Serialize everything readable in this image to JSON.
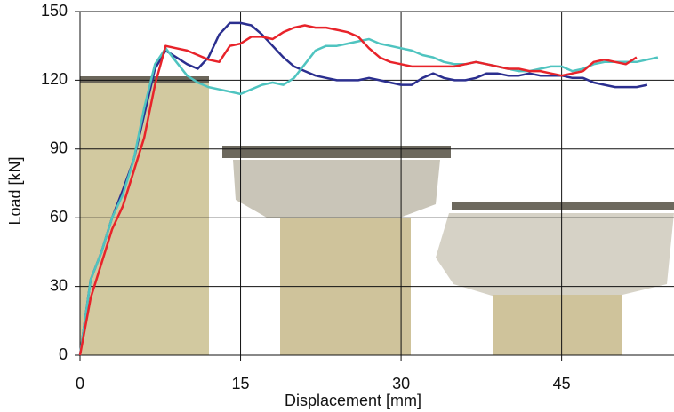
{
  "chart_data": {
    "type": "line",
    "x_label": "Displacement [mm]",
    "y_label": "Load [kN]",
    "xlim": [
      0,
      55.5
    ],
    "ylim": [
      0,
      150
    ],
    "xticks": [
      0,
      15,
      30,
      45
    ],
    "yticks": [
      0,
      30,
      60,
      90,
      120,
      150
    ],
    "grid": true,
    "x": [
      0,
      1,
      2,
      3,
      4,
      5,
      6,
      7,
      8,
      9,
      10,
      11,
      12,
      13,
      14,
      15,
      16,
      17,
      18,
      19,
      20,
      21,
      22,
      23,
      24,
      25,
      26,
      27,
      28,
      29,
      30,
      31,
      32,
      33,
      34,
      35,
      36,
      37,
      38,
      39,
      40,
      41,
      42,
      43,
      44,
      45,
      46,
      47,
      48,
      49,
      50,
      51,
      52,
      53,
      54
    ],
    "series": [
      {
        "color": "#2b2f8f",
        "values": [
          0,
          33,
          45,
          60,
          72,
          85,
          105,
          125,
          133,
          130,
          127,
          125,
          130,
          140,
          145,
          145,
          144,
          140,
          135,
          130,
          126,
          124,
          122,
          121,
          120,
          120,
          120,
          121,
          120,
          119,
          118,
          118,
          121,
          123,
          121,
          120,
          120,
          121,
          123,
          123,
          122,
          122,
          123,
          122,
          122,
          122,
          121,
          121,
          119,
          118,
          117,
          117,
          117,
          118,
          null
        ]
      },
      {
        "color": "#4fc4c0",
        "values": [
          0,
          33,
          45,
          60,
          70,
          85,
          108,
          127,
          134,
          128,
          122,
          119,
          117,
          116,
          115,
          114,
          116,
          118,
          119,
          118,
          121,
          127,
          133,
          135,
          135,
          136,
          137,
          138,
          136,
          135,
          134,
          133,
          131,
          130,
          128,
          127,
          127,
          128,
          127,
          126,
          125,
          124,
          124,
          125,
          126,
          126,
          124,
          125,
          127,
          128,
          128,
          128,
          128,
          129,
          130
        ]
      },
      {
        "color": "#e8232a",
        "values": [
          0,
          25,
          40,
          55,
          65,
          80,
          95,
          118,
          135,
          134,
          133,
          131,
          129,
          128,
          135,
          136,
          139,
          139,
          138,
          141,
          143,
          144,
          143,
          143,
          142,
          141,
          139,
          134,
          130,
          128,
          127,
          126,
          126,
          126,
          126,
          126,
          127,
          128,
          127,
          126,
          125,
          125,
          124,
          124,
          123,
          122,
          123,
          124,
          128,
          129,
          128,
          127,
          130,
          null,
          null
        ]
      }
    ]
  }
}
